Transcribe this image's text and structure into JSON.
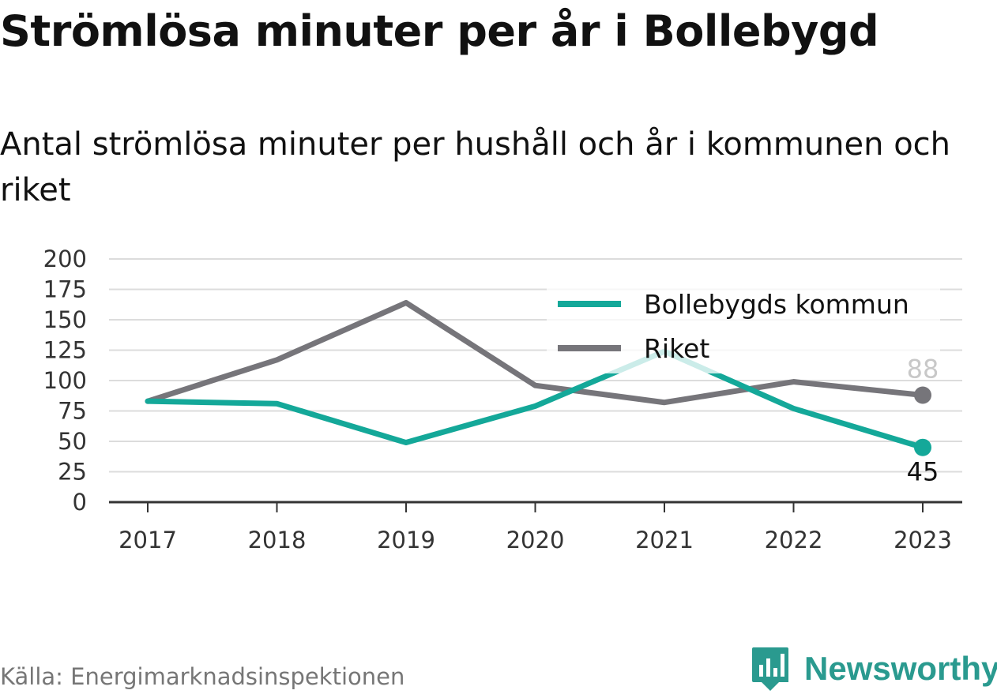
{
  "header": {
    "title": "Strömlösa minuter per år i Bollebygd",
    "subtitle": "Antal strömlösa minuter per hushåll och år i kommunen och riket"
  },
  "footer": {
    "source": "Källa: Energimarknadsinspektionen",
    "brand": "Newsworthy"
  },
  "colors": {
    "bollebygd": "#14a899",
    "riket": "#76757a",
    "grid": "#dcdcdc",
    "axis": "#333333"
  },
  "chart_data": {
    "type": "line",
    "title": "Strömlösa minuter per år i Bollebygd",
    "subtitle": "Antal strömlösa minuter per hushåll och år i kommunen och riket",
    "x": [
      "2017",
      "2018",
      "2019",
      "2020",
      "2021",
      "2022",
      "2023"
    ],
    "ylim": [
      0,
      200
    ],
    "yticks": [
      "0",
      "25",
      "50",
      "75",
      "100",
      "125",
      "150",
      "175",
      "200"
    ],
    "grid": true,
    "legend_position": "top-right",
    "series": [
      {
        "name": "Bollebygds kommun",
        "values": [
          83,
          81,
          49,
          79,
          124,
          77,
          45
        ],
        "end_label": "45"
      },
      {
        "name": "Riket",
        "values": [
          83,
          117,
          164,
          96,
          82,
          99,
          88
        ],
        "end_label": "88"
      }
    ]
  }
}
